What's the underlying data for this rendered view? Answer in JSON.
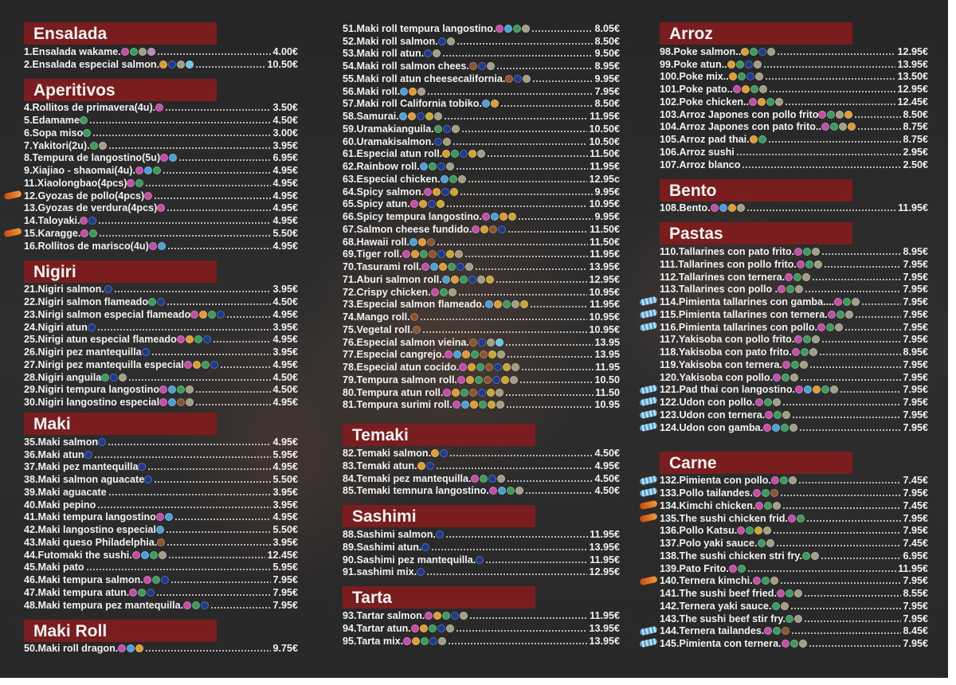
{
  "icon_colors": {
    "p": "#c24fa6",
    "g": "#3c9a5c",
    "b": "#1d3a8c",
    "o": "#de9c34",
    "t": "#a39d84",
    "c": "#4d9fd6",
    "w": "#8a5530",
    "y": "#c9a733",
    "s": "#6cc8e6",
    "m": "#b98ab8"
  },
  "icon_legend": {
    "p": "gluten-icon",
    "g": "soy-icon",
    "b": "fish-icon",
    "o": "egg-icon",
    "t": "sesame-icon",
    "c": "crustacean-icon",
    "w": "dairy-icon",
    "y": "mustard-icon",
    "s": "mollusc-icon",
    "m": "seaweed-icon"
  },
  "columns": [
    {
      "sections": [
        {
          "title": "Ensalada",
          "items": [
            {
              "name": "1.Ensalada wakame.",
              "price": "4.00€",
              "icons": "pgtm"
            },
            {
              "name": "2.Ensalada especial salmon.",
              "price": "10.50€",
              "icons": "obts"
            }
          ]
        },
        {
          "title": "Aperitivos",
          "items": [
            {
              "name": "4.Rollitos de primavera(4u).",
              "price": "3.50€",
              "icons": "p"
            },
            {
              "name": "5.Edamame",
              "price": "4.50€",
              "icons": "g"
            },
            {
              "name": "6.Sopa miso",
              "price": "3.00€",
              "icons": "g"
            },
            {
              "name": "7.Yakitori(2u).",
              "price": "3.95€",
              "icons": "gt"
            },
            {
              "name": "8.Tempura de langostino(5u)",
              "price": "6.95€",
              "icons": "pc"
            },
            {
              "name": "9.Xiajiao - shaomai(4u).",
              "price": "4.95€",
              "icons": "pcg"
            },
            {
              "name": "11.Xiaolongbao(4pcs)",
              "price": "4.95€",
              "icons": "pg"
            },
            {
              "name": "12.Gyozas de pollo(4pcs)",
              "price": "4.95€",
              "icons": "p",
              "badge": "hot"
            },
            {
              "name": "13.Gyozas de verdura(4pcs)",
              "price": "4.95€",
              "icons": "p"
            },
            {
              "name": "14.Taloyaki.",
              "price": "4.95€",
              "icons": "pb"
            },
            {
              "name": "15.Karagge.",
              "price": "5.50€",
              "icons": "pg",
              "badge": "hot"
            },
            {
              "name": "16.Rollitos de marisco(4u)",
              "price": "4.95€",
              "icons": "pc"
            }
          ]
        },
        {
          "title": "Nigiri",
          "items": [
            {
              "name": "21.Nigiri salmon.",
              "price": "3.95€",
              "icons": "b"
            },
            {
              "name": "22.Nigiri salmon flameado",
              "price": "4.50€",
              "icons": "gb"
            },
            {
              "name": "23.Nirigi salmon especial flameado",
              "price": "4.95€",
              "icons": "pogb"
            },
            {
              "name": "24.Nigiri atun",
              "price": "3.95€",
              "icons": "b"
            },
            {
              "name": "25.Nirigi atun especial flameado",
              "price": "4.95€",
              "icons": "pogb"
            },
            {
              "name": "26.Nigiri pez mantequilla",
              "price": "3.95€",
              "icons": "b"
            },
            {
              "name": "27.Nirigi pez mantequilla especial",
              "price": "4.95€",
              "icons": "pogb"
            },
            {
              "name": "28.Nigiri anguila",
              "price": "4.50€",
              "icons": "gbt"
            },
            {
              "name": "29.Nigiri tempura langostino",
              "price": "4.50€",
              "icons": "pcgt"
            },
            {
              "name": "30.Nigiri langostino especial",
              "price": "4.95€",
              "icons": "pcwt"
            }
          ]
        },
        {
          "title": "Maki",
          "items": [
            {
              "name": "35.Maki salmon",
              "price": "4.95€",
              "icons": "b"
            },
            {
              "name": "36.Maki atun",
              "price": "5.95€",
              "icons": "b"
            },
            {
              "name": "37.Maki pez mantequilla",
              "price": "4.95€",
              "icons": "b"
            },
            {
              "name": "38.Maki salmon aguacate",
              "price": "5.50€",
              "icons": "b"
            },
            {
              "name": "39.Maki aguacate",
              "price": "3.95€",
              "icons": ""
            },
            {
              "name": "40.Maki pepino",
              "price": "3.95€",
              "icons": ""
            },
            {
              "name": "41.Maki tempura langostino",
              "price": "4.95€",
              "icons": "pc"
            },
            {
              "name": "42.Maki langostino especial",
              "price": "5.50€",
              "icons": "c"
            },
            {
              "name": "43.Maki queso Philadelphia.",
              "price": "3.95€",
              "icons": "w"
            },
            {
              "name": "44.Futomaki the sushi.",
              "price": "12.45€",
              "icons": "pcgt"
            },
            {
              "name": "45.Maki pato",
              "price": "5.95€",
              "icons": ""
            },
            {
              "name": "46.Maki tempura salmon.",
              "price": "7.95€",
              "icons": "pgb"
            },
            {
              "name": "47.Maki tempura atun.",
              "price": "7.95€",
              "icons": "pgb"
            },
            {
              "name": "48.Maki tempura pez mantequilla.",
              "price": "7.95€",
              "icons": "pgb"
            }
          ]
        },
        {
          "title": "Maki Roll",
          "items": [
            {
              "name": "50.Maki roll dragon.",
              "price": "9.75€",
              "icons": "pco"
            }
          ]
        }
      ]
    },
    {
      "sections": [
        {
          "title": "",
          "items": [
            {
              "name": "51.Maki roll tempura langostino.",
              "price": "8.05€",
              "icons": "pcgt"
            },
            {
              "name": "52.Maki roll salmon.",
              "price": "8.50€",
              "icons": "bt"
            },
            {
              "name": "53.Maki roll atun.",
              "price": "9.50€",
              "icons": "bt"
            },
            {
              "name": "54.Maki roll salmon chees.",
              "price": "8.95€",
              "icons": "wbt"
            },
            {
              "name": "55.Maki roll atun cheesecalifornia.",
              "price": "9.95€",
              "icons": "wbt"
            },
            {
              "name": "56.Maki roll.",
              "price": "7.95€",
              "icons": "cot"
            },
            {
              "name": "57.Maki roll California tobiko.",
              "price": "8.50€",
              "icons": "co"
            },
            {
              "name": "58.Samurai.",
              "price": "11.95€",
              "icons": "cobyt"
            },
            {
              "name": "59.Uramakianguila.",
              "price": "10.50€",
              "icons": "gbt"
            },
            {
              "name": "60.Uramakisalmon.",
              "price": "10.50€",
              "icons": "bt"
            },
            {
              "name": "61.Especial atun roll.",
              "price": "11.50€",
              "icons": "ogbyt"
            },
            {
              "name": "62.Rainbow roll.",
              "price": "11.95€",
              "icons": "cgbt"
            },
            {
              "name": "63.Especial chicken.",
              "price": "12.95c",
              "icons": "cgt"
            },
            {
              "name": "64.Spicy salmon.",
              "price": "9.95€",
              "icons": "poby"
            },
            {
              "name": "65.Spicy atun.",
              "price": "10.95€",
              "icons": "poby"
            },
            {
              "name": "66.Spicy tempura langostino.",
              "price": "9.95€",
              "icons": "pcoy"
            },
            {
              "name": "67.Salmon cheese fundido.",
              "price": "11.50€",
              "icons": "powb"
            },
            {
              "name": "68.Hawaii roll.",
              "price": "11.50€",
              "icons": "cow"
            },
            {
              "name": "69.Tiger roll.",
              "price": "11.95€",
              "icons": "pogwbyt"
            },
            {
              "name": "70.Tasurami roll.",
              "price": "13.95€",
              "icons": "pcogbt"
            },
            {
              "name": "71.Aburi salmon roll.",
              "price": "12.95€",
              "icons": "cogbty"
            },
            {
              "name": "72.Crispy chicken.",
              "price": "10.95€",
              "icons": "pgt"
            },
            {
              "name": "73.Especial salmon flameado.",
              "price": "11.95€",
              "icons": "cogty"
            },
            {
              "name": "74.Mango roll.",
              "price": "10.95€",
              "icons": "w"
            },
            {
              "name": "75.Vegetal roll.",
              "price": "10.95€",
              "icons": "w"
            },
            {
              "name": "76.Especial salmon vieina.",
              "price": "13.95",
              "icons": "wbts"
            },
            {
              "name": "77.Especial cangrejo.",
              "price": "13.95",
              "icons": "pcogwyt"
            },
            {
              "name": "78.Especial atun cocido.",
              "price": "11.95",
              "icons": "pogwbyt"
            },
            {
              "name": "79.Tempura salmon roll.",
              "price": "10.50",
              "icons": "pogwbyt"
            },
            {
              "name": "80.Tempura atun roll.",
              "price": "11.50",
              "icons": "pogwbyt"
            },
            {
              "name": "81.Tempura surimi roll.",
              "price": "10.95",
              "icons": "pcogyt"
            }
          ]
        },
        {
          "title": "Temaki",
          "items": [
            {
              "name": "82.Temaki salmon.",
              "price": "4.50€",
              "icons": "ob"
            },
            {
              "name": "83.Temaki atun.",
              "price": "4.95€",
              "icons": "ob"
            },
            {
              "name": "84.Temaki pez mantequilla.",
              "price": "4.50€",
              "icons": "pgbt"
            },
            {
              "name": "85.Temaki temnura langostino.",
              "price": "4.50€",
              "icons": "pcgt"
            }
          ]
        },
        {
          "title": "Sashimi",
          "items": [
            {
              "name": "88.Sashimi salmon.",
              "price": "11.95€",
              "icons": "b"
            },
            {
              "name": "89.Sashimi atun.",
              "price": "13.95€",
              "icons": "b"
            },
            {
              "name": "90.Sashimi pez mantequilla.",
              "price": "11.95€",
              "icons": "b"
            },
            {
              "name": "91.sashimi mix.",
              "price": "12.95€",
              "icons": "b"
            }
          ]
        },
        {
          "title": "Tarta",
          "items": [
            {
              "name": "93.Tartar salmon.",
              "price": "11.95€",
              "icons": "pogbt"
            },
            {
              "name": "94.Tartar atun.",
              "price": "13.95€",
              "icons": "pogbt"
            },
            {
              "name": "95.Tarta mix.",
              "price": "13.95€",
              "icons": "pogbt"
            }
          ]
        }
      ]
    },
    {
      "sections": [
        {
          "title": "Arroz",
          "items": [
            {
              "name": "98.Poke salmon..",
              "price": "12.95€",
              "icons": "ogbt"
            },
            {
              "name": "99.Poke atun..",
              "price": "13.95€",
              "icons": "ogbt"
            },
            {
              "name": "100.Poke mix..",
              "price": "13.50€",
              "icons": "ogbt"
            },
            {
              "name": "101.Poke pato..",
              "price": "12.95€",
              "icons": "pogt"
            },
            {
              "name": "102.Poke chicken..",
              "price": "12.45€",
              "icons": "pogt"
            },
            {
              "name": "103.Arroz Japones con pollo frito",
              "price": "8.50€",
              "icons": "pgto"
            },
            {
              "name": "104.Arroz Japones con pato frito..",
              "price": "8.75€",
              "icons": "pgto"
            },
            {
              "name": "105.Arroz pad thai.",
              "price": "8.75€",
              "icons": "og"
            },
            {
              "name": "106.Arroz sushi",
              "price": "2.95€",
              "icons": ""
            },
            {
              "name": "107.Arroz blanco",
              "price": "2.50€",
              "icons": ""
            }
          ]
        },
        {
          "title": "Bento",
          "items": [
            {
              "name": "108.Bento.",
              "price": "11.95€",
              "icons": "pcot"
            }
          ]
        },
        {
          "title": "Pastas",
          "items": [
            {
              "name": "110.Tallarines con pato frito.",
              "price": "8.95€",
              "icons": "pgt"
            },
            {
              "name": "111.Tallarines con pollo frito.",
              "price": "7.95€",
              "icons": "pgt"
            },
            {
              "name": "112.Tallarines con ternera.",
              "price": "7.95€",
              "icons": "pgt"
            },
            {
              "name": "113.Tallarines con pollo .",
              "price": "7.95€",
              "icons": "pgt"
            },
            {
              "name": "114.Pimienta tallarines con gamba....",
              "price": "7.95€",
              "icons": "pgt",
              "badge": "new"
            },
            {
              "name": "115.Pimienta tallarines con ternera.",
              "price": "7.95€",
              "icons": "pgt",
              "badge": "new"
            },
            {
              "name": "116.Pimienta tallarines con pollo.",
              "price": "7.95€",
              "icons": "pgt",
              "badge": "new"
            },
            {
              "name": "117.Yakisoba con pollo frito.",
              "price": "7.95€",
              "icons": "pgt"
            },
            {
              "name": "118.Yakisoba con pato frito.",
              "price": "8.95€",
              "icons": "pgt"
            },
            {
              "name": "119.Yakisoba con ternera.",
              "price": "7.95€",
              "icons": "pgt"
            },
            {
              "name": "120.Yakisoba con pollo.",
              "price": "7.95€",
              "icons": "pgt"
            },
            {
              "name": "121.Pad thai con langostino.",
              "price": "7.95€",
              "icons": "pcogt",
              "badge": "new"
            },
            {
              "name": "122.Udon con pollo.",
              "price": "7.95€",
              "icons": "pgt",
              "badge": "new"
            },
            {
              "name": "123.Udon con ternera.",
              "price": "7.95€",
              "icons": "pgt",
              "badge": "new"
            },
            {
              "name": "124.Udon con gamba.",
              "price": "7.95€",
              "icons": "pcgt",
              "badge": "new"
            }
          ]
        },
        {
          "title": "Carne",
          "items": [
            {
              "name": "132.Pimienta con pollo.",
              "price": "7.45€",
              "icons": "pgt",
              "badge": "new"
            },
            {
              "name": "133.Pollo tailandes.",
              "price": "7.95€",
              "icons": "pgw",
              "badge": "new"
            },
            {
              "name": "134.Kimchi chicken.",
              "price": "7.45€",
              "icons": "pgt",
              "badge": "hot"
            },
            {
              "name": "135.The sushi chicken frid.",
              "price": "7.95€",
              "icons": "pg",
              "badge": "hot"
            },
            {
              "name": "136.Pollo Katsu.",
              "price": "7.95€",
              "icons": "pgyt"
            },
            {
              "name": "137.Polo yaki sauce.",
              "price": "7.45€",
              "icons": "gt"
            },
            {
              "name": "138.The sushi chicken stri fry.",
              "price": "6.95€",
              "icons": "gt"
            },
            {
              "name": "139.Pato Frito.",
              "price": "11.95€",
              "icons": "pg"
            },
            {
              "name": "140.Ternera kimchi.",
              "price": "7.95€",
              "icons": "pgt",
              "badge": "hot"
            },
            {
              "name": "141.The sushi beef fried.",
              "price": "8.55€",
              "icons": "pgt"
            },
            {
              "name": "142.Ternera yaki sauce.",
              "price": "7.95€",
              "icons": "gt"
            },
            {
              "name": "143.The sushi beef stir fry.",
              "price": "7.95€",
              "icons": "gt"
            },
            {
              "name": "144.Ternera tailandes.",
              "price": "8.45€",
              "icons": "pgw",
              "badge": "new"
            },
            {
              "name": "145.Pimienta con ternera.",
              "price": "7.95€",
              "icons": "pgt",
              "badge": "new"
            }
          ]
        }
      ]
    }
  ]
}
